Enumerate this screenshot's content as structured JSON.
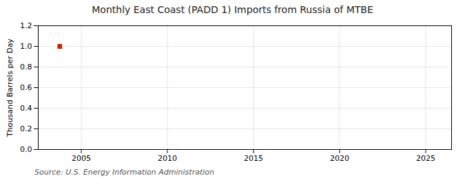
{
  "chart_data": {
    "type": "scatter",
    "title": "Monthly East Coast (PADD 1) Imports from Russia of MTBE",
    "ylabel": "Thousand Barrels per Day",
    "source": "Source: U.S. Energy Information Administration",
    "x": [
      2003.75
    ],
    "values": [
      1.0
    ],
    "color": "#cc2200",
    "marker": "square",
    "xlim": [
      2002.5,
      2026.5
    ],
    "xticks": [
      2005,
      2010,
      2015,
      2020,
      2025
    ],
    "ylim": [
      0.0,
      1.2
    ],
    "yticks": [
      {
        "value": 0,
        "label": "0.0"
      },
      0.2,
      0.4,
      0.6,
      0.8,
      {
        "value": 1,
        "label": "1.0"
      },
      1.2
    ],
    "grid": true
  }
}
